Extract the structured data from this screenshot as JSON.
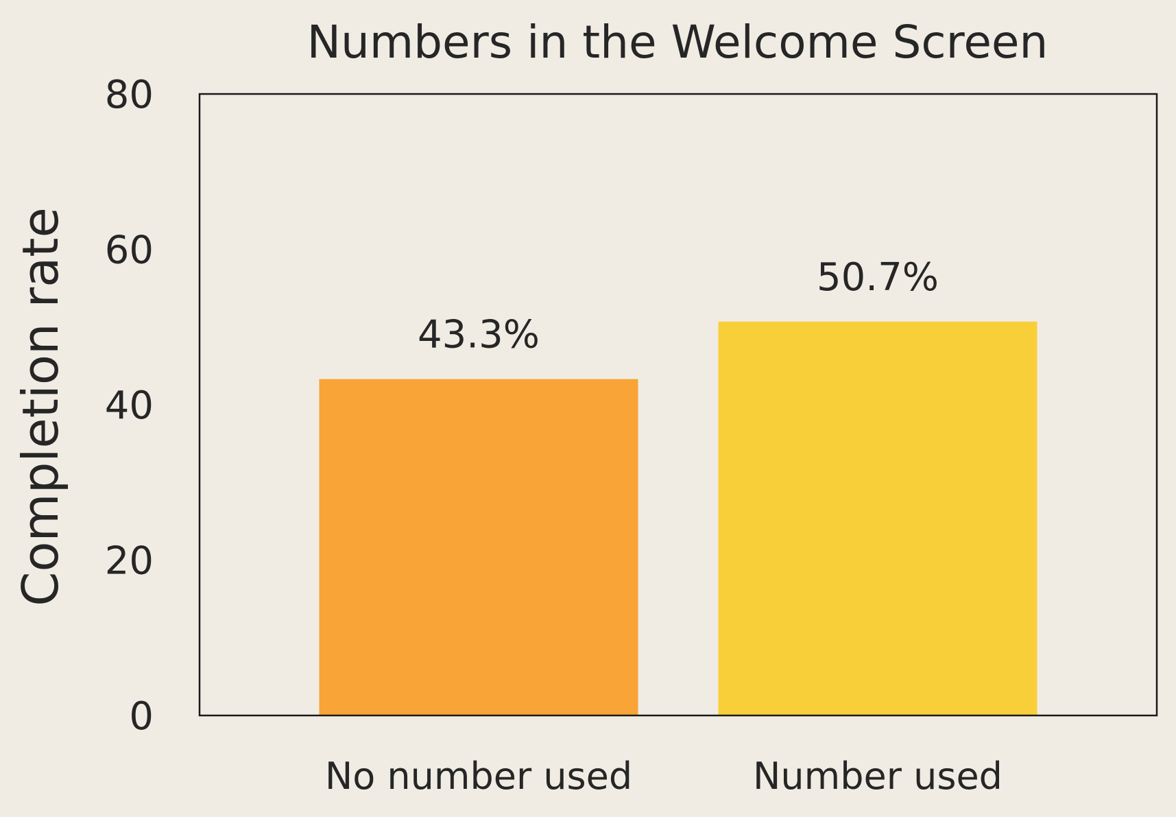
{
  "chart_data": {
    "type": "bar",
    "title": "Numbers in the Welcome Screen",
    "xlabel": "",
    "ylabel": "Completion rate",
    "categories": [
      "No number used",
      "Number used"
    ],
    "values": [
      43.3,
      50.7
    ],
    "value_labels": [
      "43.3%",
      "50.7%"
    ],
    "colors": [
      "#f9a436",
      "#f9cf39"
    ],
    "ylim": [
      0,
      80
    ],
    "yticks": [
      0,
      20,
      40,
      60,
      80
    ],
    "ytick_labels": [
      "0",
      "20",
      "40",
      "60",
      "80"
    ],
    "grid": false,
    "legend": "none"
  },
  "colors": {
    "background": "#f0ece4",
    "text": "#262626",
    "frame": "#1a1a1a"
  }
}
